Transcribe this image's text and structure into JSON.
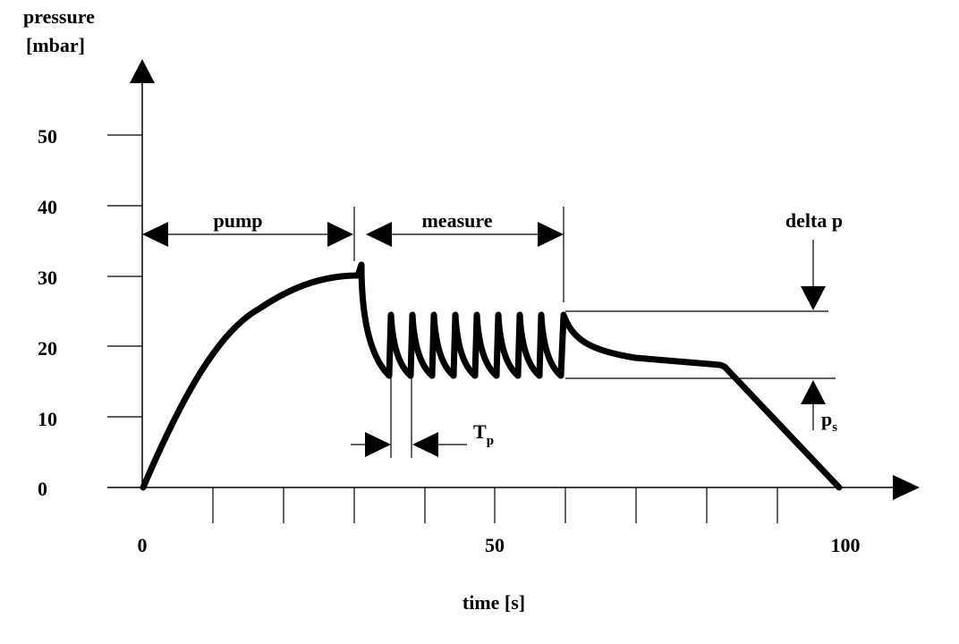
{
  "axes": {
    "y_label_line1": "pressure",
    "y_label_line2": "[mbar]",
    "x_label": "time [s]",
    "y_ticks": [
      "0",
      "10",
      "20",
      "30",
      "40",
      "50"
    ],
    "x_ticks": [
      "0",
      "50",
      "100"
    ]
  },
  "annotations": {
    "pump": "pump",
    "measure": "measure",
    "delta_p": "delta p",
    "tp_main": "T",
    "tp_sub": "p",
    "ps_main": "p",
    "ps_sub": "s"
  },
  "colors": {
    "ink": "#000000",
    "background": "#ffffff"
  }
}
